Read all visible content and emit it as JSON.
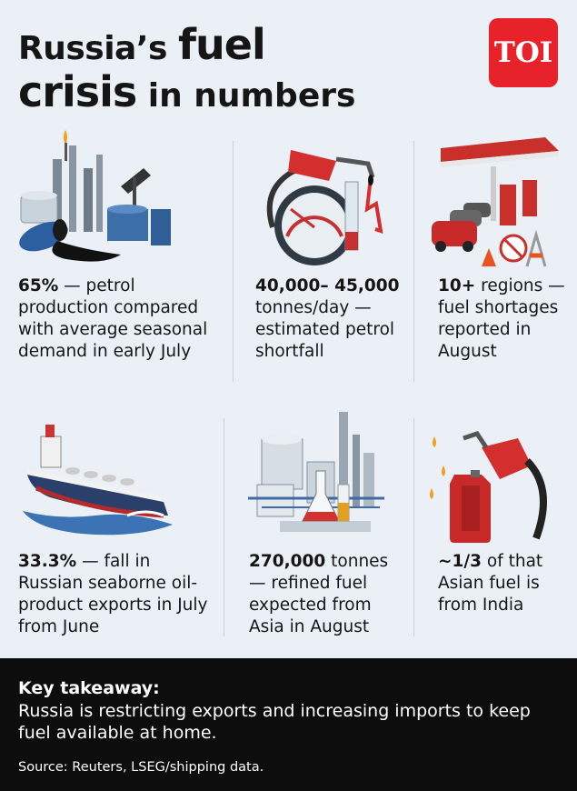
{
  "header": {
    "title_a": "Russia’s ",
    "title_b": "fuel",
    "title_c": "crisis",
    "title_d": " in numbers",
    "logo_text": "TOI",
    "brand_color": "#e8222b"
  },
  "stats": [
    {
      "highlight": "65%",
      "text": " — petrol production compared with average seasonal demand in early July",
      "icon": "refinery-oil-spill-icon"
    },
    {
      "highlight": "40,000– 45,000",
      "text": " tonnes/day — estimated petrol shortfall",
      "icon": "fuel-gauge-nozzle-icon"
    },
    {
      "highlight": "10+",
      "text": " regions — fuel shortages reported in August",
      "icon": "gas-station-queue-icon"
    },
    {
      "highlight": "33.3%",
      "text": " — fall in Russian seaborne oil-product exports in July from June",
      "icon": "tanker-ship-icon"
    },
    {
      "highlight": "270,000",
      "text": " tonnes — refined fuel expected from Asia in August",
      "icon": "refinery-flask-icon"
    },
    {
      "highlight": "~1/3",
      "text": " of that Asian fuel is from India",
      "icon": "jerrycan-nozzle-icon"
    }
  ],
  "footer": {
    "takeaway_heading": "Key takeaway:",
    "takeaway_body": "Russia is restricting exports and increasing imports to keep fuel available at home.",
    "source": "Source: Reuters, LSEG/shipping data."
  }
}
